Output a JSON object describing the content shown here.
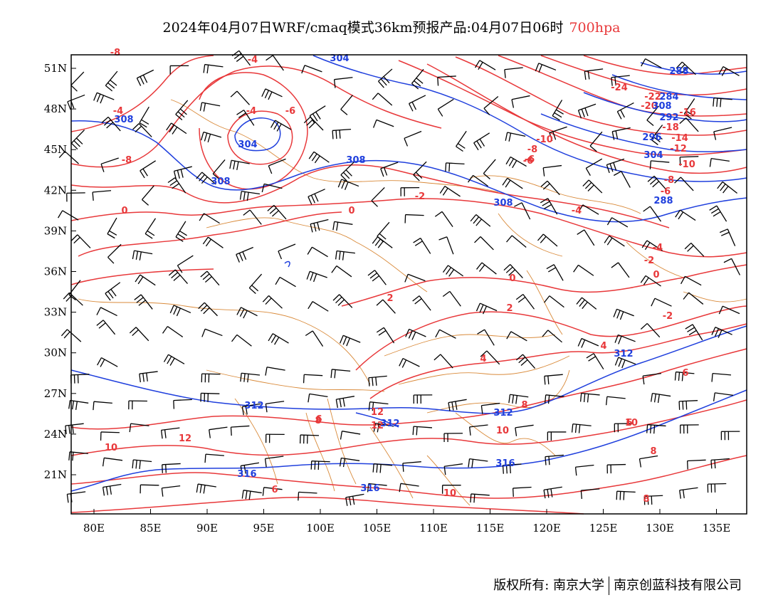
{
  "title": {
    "main": "2024年04月07日WRF/cmaq模式36km预报产品:04月07日06时",
    "level": "700hpa"
  },
  "map": {
    "lon_range": [
      78,
      138
    ],
    "lat_range": [
      18,
      52
    ],
    "lon_ticks": [
      "80E",
      "85E",
      "90E",
      "95E",
      "100E",
      "105E",
      "110E",
      "115E",
      "120E",
      "125E",
      "130E",
      "135E"
    ],
    "lat_ticks": [
      "51N",
      "48N",
      "45N",
      "42N",
      "39N",
      "36N",
      "33N",
      "30N",
      "27N",
      "24N",
      "21N"
    ],
    "colors": {
      "temperature": "#e8383a",
      "height": "#1f3fdd",
      "border": "#d98a3a",
      "wind": "#000000"
    }
  },
  "temperature_labels": [
    "-8",
    "-4",
    "-4",
    "-6",
    "-8",
    "-4",
    "-2",
    "0",
    "0",
    "-10",
    "-8",
    "-6",
    "-4",
    "-24",
    "-20",
    "-22",
    "-16",
    "-18",
    "-14",
    "-12",
    "-10",
    "-8",
    "-6",
    "-4",
    "-2",
    "0",
    "0",
    "2",
    "2",
    "-2",
    "4",
    "4",
    "6",
    "8",
    "10",
    "12",
    "10",
    "8",
    "6",
    "6",
    "8",
    "10",
    "12",
    "12",
    "10",
    "8",
    "6",
    "-6"
  ],
  "height_labels": [
    "304",
    "308",
    "304",
    "308",
    "308",
    "308",
    "308",
    "304",
    "296",
    "292",
    "288",
    "284",
    "288",
    "312",
    "312",
    "312",
    "312",
    "316",
    "316",
    "316"
  ],
  "footer": {
    "left": "版权所有: 南京大学",
    "right": "南京创蓝科技有限公司"
  }
}
